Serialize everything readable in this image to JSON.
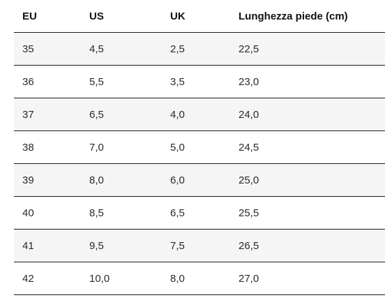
{
  "table": {
    "headers": [
      "EU",
      "US",
      "UK",
      "Lunghezza piede (cm)"
    ],
    "rows": [
      [
        "35",
        "4,5",
        "2,5",
        "22,5"
      ],
      [
        "36",
        "5,5",
        "3,5",
        "23,0"
      ],
      [
        "37",
        "6,5",
        "4,0",
        "24,0"
      ],
      [
        "38",
        "7,0",
        "5,0",
        "24,5"
      ],
      [
        "39",
        "8,0",
        "6,0",
        "25,0"
      ],
      [
        "40",
        "8,5",
        "6,5",
        "25,5"
      ],
      [
        "41",
        "9,5",
        "7,5",
        "26,5"
      ],
      [
        "42",
        "10,0",
        "8,0",
        "27,0"
      ]
    ]
  }
}
